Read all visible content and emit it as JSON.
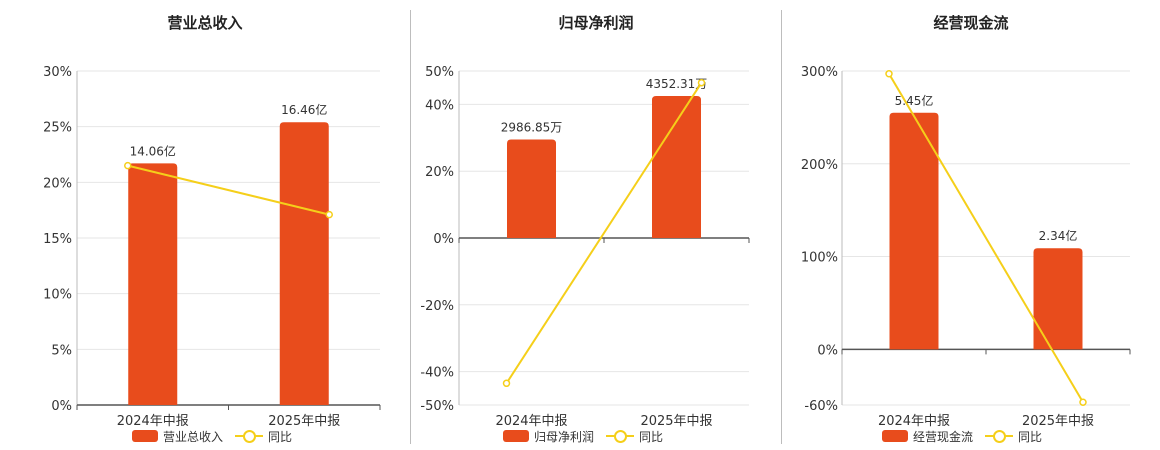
{
  "colors": {
    "bar": "#e84c1c",
    "line": "#f5cf1a",
    "grid": "#e6e6e6",
    "axis": "#555555"
  },
  "chart_data": [
    {
      "type": "bar",
      "title": "营业总收入",
      "categories": [
        "2024年中报",
        "2025年中报"
      ],
      "series": [
        {
          "name": "营业总收入",
          "type": "bar",
          "values": [
            21.7,
            25.4
          ],
          "labels": [
            "14.06亿",
            "16.46亿"
          ]
        },
        {
          "name": "同比",
          "type": "line",
          "values": [
            21.5,
            17.1
          ]
        }
      ],
      "ylim": [
        0,
        30
      ],
      "yticks": [
        0,
        5,
        10,
        15,
        20,
        25,
        30
      ],
      "ytick_labels": [
        "0%",
        "5%",
        "10%",
        "15%",
        "20%",
        "25%",
        "30%"
      ],
      "grid": true,
      "legend": "bottom"
    },
    {
      "type": "bar",
      "title": "归母净利润",
      "categories": [
        "2024年中报",
        "2025年中报"
      ],
      "series": [
        {
          "name": "归母净利润",
          "type": "bar",
          "values": [
            29.5,
            42.5
          ],
          "labels": [
            "2986.85万",
            "4352.31万"
          ]
        },
        {
          "name": "同比",
          "type": "line",
          "values": [
            -43.5,
            46.5
          ]
        }
      ],
      "ylim": [
        -50,
        50
      ],
      "yticks": [
        -50,
        -40,
        -20,
        0,
        20,
        40,
        50
      ],
      "ytick_labels": [
        "-50%",
        "-40%",
        "-20%",
        "0%",
        "20%",
        "40%",
        "50%"
      ],
      "grid": true,
      "legend": "bottom"
    },
    {
      "type": "bar",
      "title": "经营现金流",
      "categories": [
        "2024年中报",
        "2025年中报"
      ],
      "series": [
        {
          "name": "经营现金流",
          "type": "bar",
          "values": [
            255,
            109
          ],
          "labels": [
            "5.45亿",
            "2.34亿"
          ]
        },
        {
          "name": "同比",
          "type": "line",
          "values": [
            297,
            -57
          ]
        }
      ],
      "ylim": [
        -60,
        300
      ],
      "yticks": [
        -60,
        0,
        100,
        200,
        300
      ],
      "ytick_labels": [
        "-60%",
        "0%",
        "100%",
        "200%",
        "300%"
      ],
      "grid": true,
      "legend": "bottom"
    }
  ]
}
